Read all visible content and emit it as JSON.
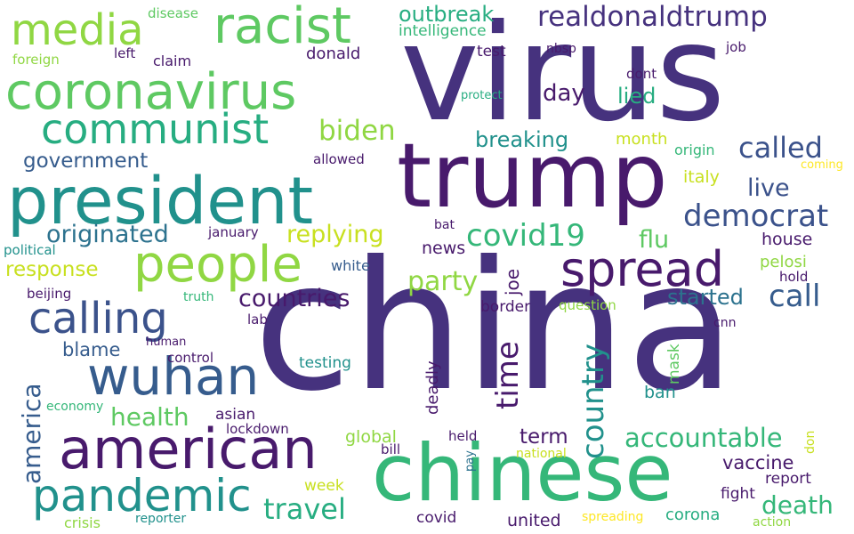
{
  "words": {
    "virus": "virus",
    "china": "china",
    "trump": "trump",
    "chinese": "chinese",
    "president": "president",
    "coronavirus": "coronavirus",
    "american": "american",
    "people": "people",
    "racist": "racist",
    "media": "media",
    "wuhan": "wuhan",
    "communist": "communist",
    "spread": "spread",
    "pandemic": "pandemic",
    "calling": "calling",
    "realdonaldtrump": "realdonaldtrump",
    "democrat": "democrat",
    "covid19": "covid19",
    "country": "country",
    "called": "called",
    "call": "call",
    "travel": "travel",
    "accountable": "accountable",
    "biden": "biden",
    "originated": "originated",
    "replying": "replying",
    "time": "time",
    "party": "party",
    "countries": "countries",
    "health": "health",
    "death": "death",
    "outbreak": "outbreak",
    "america": "america",
    "breaking": "breaking",
    "government": "government",
    "response": "response",
    "live": "live",
    "flu": "flu",
    "day": "day",
    "lied": "lied",
    "started": "started",
    "vaccine": "vaccine",
    "term": "term",
    "blame": "blame",
    "house": "house",
    "intelligence": "intelligence",
    "disease": "disease",
    "test": "test",
    "left": "left",
    "claim": "claim",
    "donald": "donald",
    "foreign": "foreign",
    "nbsp": "nbsp",
    "job": "job",
    "dont": "dont",
    "protect": "protect",
    "month": "month",
    "origin": "origin",
    "coming": "coming",
    "allowed": "allowed",
    "italy": "italy",
    "january": "january",
    "bat": "bat",
    "news": "news",
    "political": "political",
    "white": "white",
    "joe": "joe",
    "pelosi": "pelosi",
    "hold": "hold",
    "beijing": "beijing",
    "truth": "truth",
    "lab": "lab",
    "border": "border",
    "question": "question",
    "cnn": "cnn",
    "human": "human",
    "control": "control",
    "testing": "testing",
    "mask": "mask",
    "ban": "ban",
    "deadly": "deadly",
    "economy": "economy",
    "asian": "asian",
    "lockdown": "lockdown",
    "global": "global",
    "held": "held",
    "bill": "bill",
    "pay": "pay",
    "national": "national",
    "don": "don",
    "report": "report",
    "fight": "fight",
    "week": "week",
    "covid": "covid",
    "united": "united",
    "corona": "corona",
    "spreading": "spreading",
    "crisis": "crisis",
    "reporter": "reporter",
    "action": "action"
  },
  "colors": {
    "palette": [
      "#46327e",
      "#481a6c",
      "#3b528b",
      "#365c8d",
      "#2c728e",
      "#21918c",
      "#27ad81",
      "#35b779",
      "#5ec962",
      "#90d743",
      "#c8e020",
      "#fde725"
    ],
    "background": "#ffffff"
  }
}
